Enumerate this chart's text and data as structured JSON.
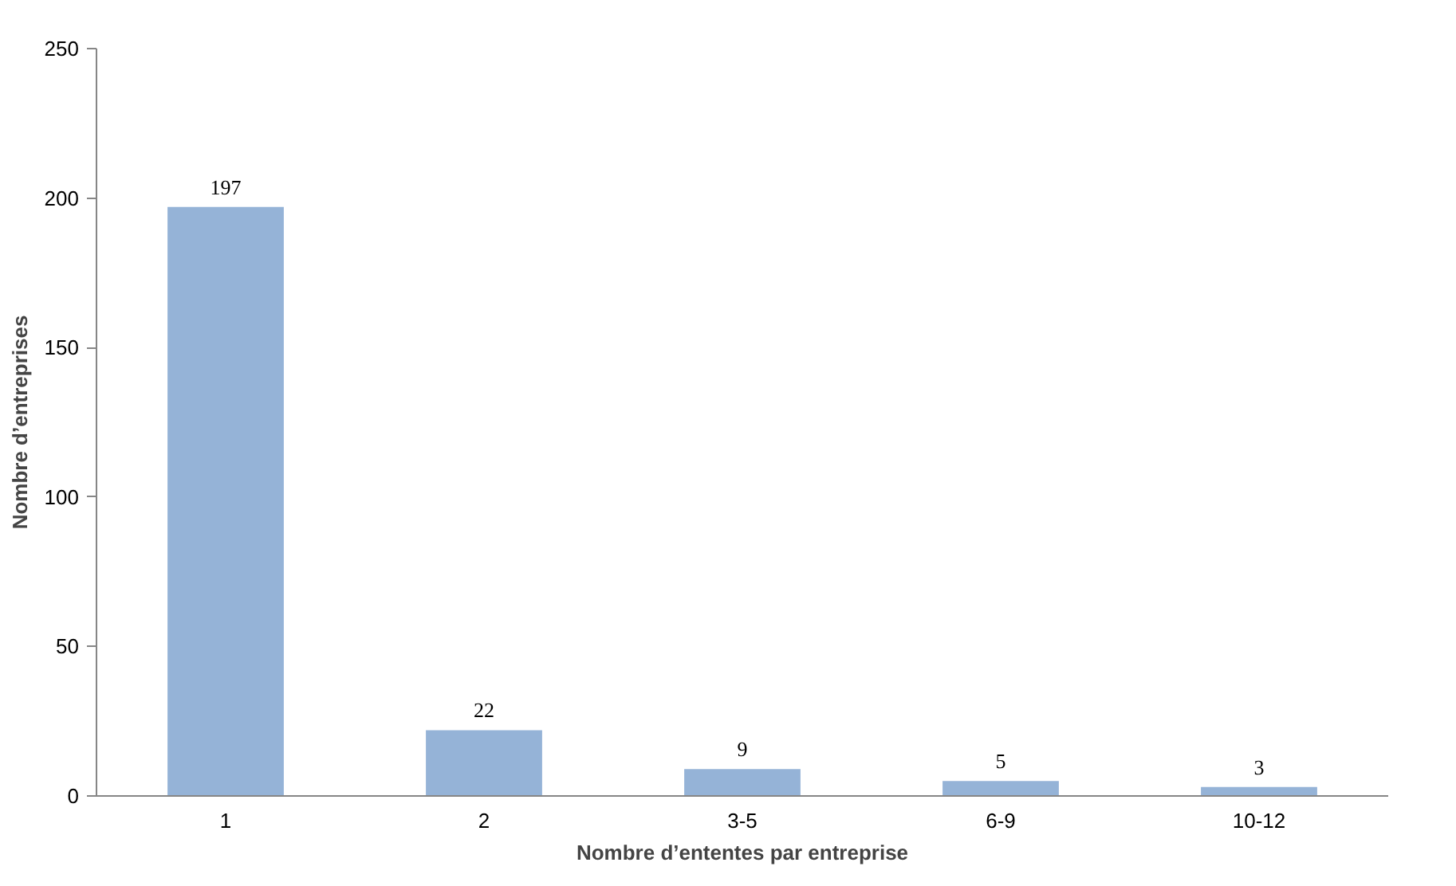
{
  "chart_data": {
    "type": "bar",
    "xlabel": "Nombre d’ententes par entreprise",
    "ylabel": "Nombre d’entreprises",
    "categories": [
      "1",
      "2",
      "3-5",
      "6-9",
      "10-12"
    ],
    "values": [
      197,
      22,
      9,
      5,
      3
    ],
    "color": "#95b3d7",
    "ylim": [
      0,
      250
    ],
    "yticks": [
      0,
      50,
      100,
      150,
      200,
      250
    ],
    "data_labels": true
  }
}
